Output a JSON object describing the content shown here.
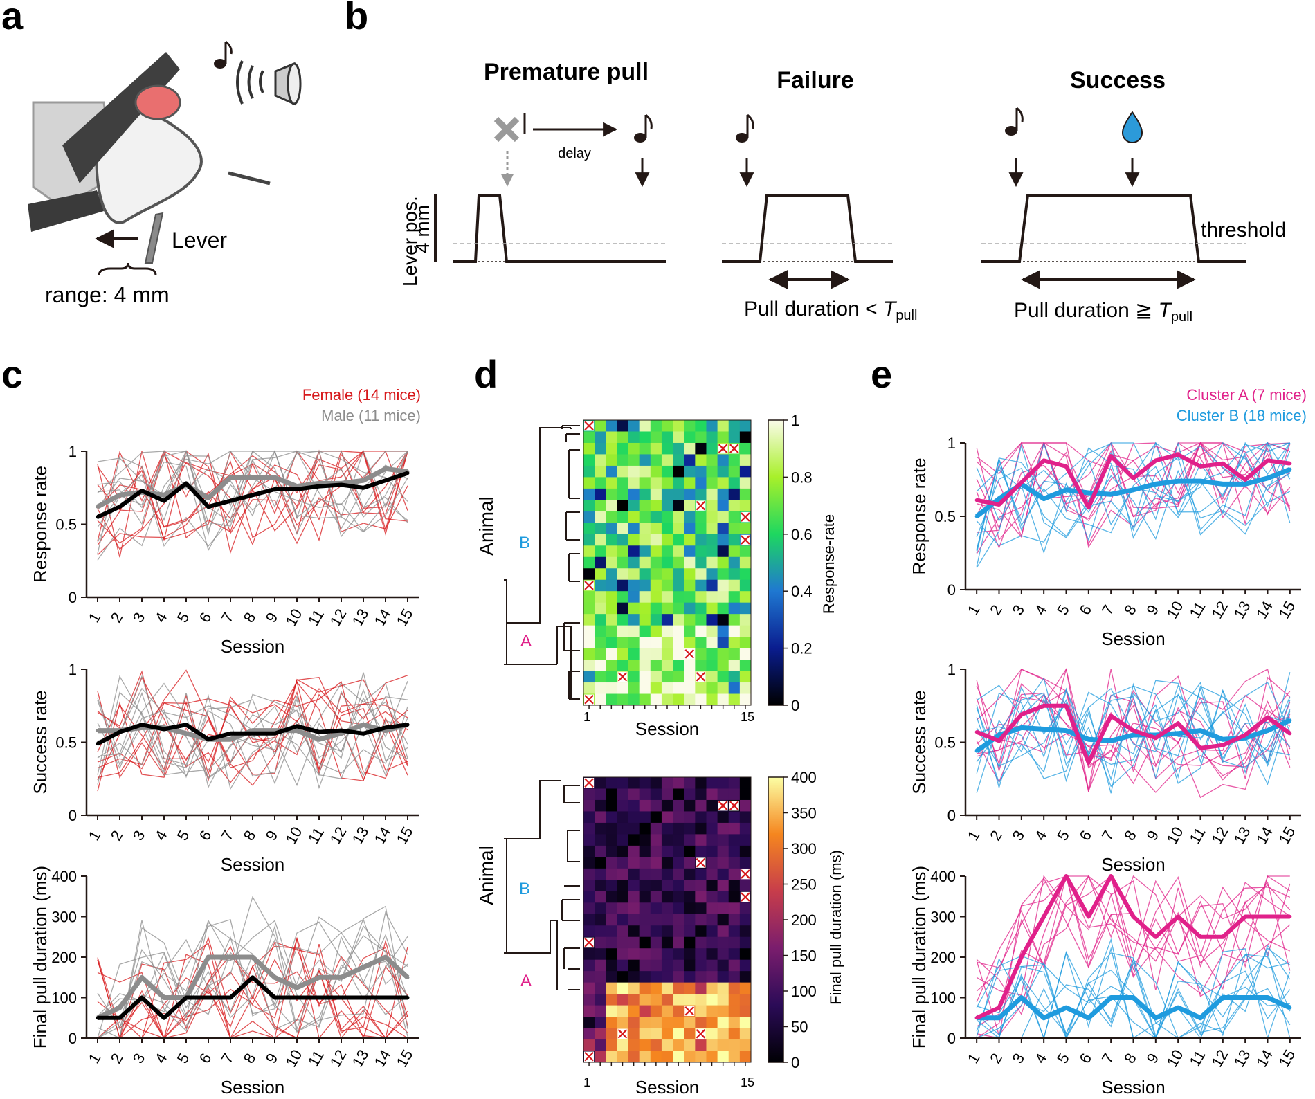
{
  "panels": {
    "a": {
      "label": "a",
      "lever_label": "Lever",
      "range_label": "range: 4 mm"
    },
    "b": {
      "label": "b",
      "titles": [
        "Premature pull",
        "Failure",
        "Success"
      ],
      "delay_label": "delay",
      "y_label_1": "Lever pos.",
      "y_label_2": "4 mm",
      "threshold_label": "threshold",
      "failure_caption": "Pull duration <",
      "success_caption": "Pull duration ≧",
      "t_symbol": "T",
      "t_subscript": "pull"
    },
    "c": {
      "label": "c",
      "legend": [
        {
          "name": "Female (14 mice)",
          "color": "#d7191c"
        },
        {
          "name": "Male (11 mice)",
          "color": "#8c8c8c"
        }
      ]
    },
    "d": {
      "label": "d",
      "xlabel": "Session",
      "ylabel": "Animal",
      "cluster_labels": [
        "B",
        "A"
      ],
      "x_tick_first": "1",
      "x_tick_last": "15",
      "colorbar1_label": "Response-rate",
      "colorbar1_ticks": [
        "1",
        "0.8",
        "0.6",
        "0.4",
        "0.2",
        "0"
      ],
      "colorbar2_label": "Final pull duration (ms)",
      "colorbar2_ticks": [
        "400",
        "350",
        "300",
        "250",
        "200",
        "150",
        "100",
        "50",
        "0"
      ]
    },
    "e": {
      "label": "e",
      "legend": [
        {
          "name": "Cluster A (7 mice)",
          "color": "#e0218a"
        },
        {
          "name": "Cluster B (18 mice)",
          "color": "#1f9bde"
        }
      ]
    }
  },
  "chart_data": [
    {
      "id": "c-response",
      "type": "line",
      "title": "",
      "xlabel": "Session",
      "ylabel": "Response rate",
      "x": [
        1,
        2,
        3,
        4,
        5,
        6,
        7,
        8,
        9,
        10,
        11,
        12,
        13,
        14,
        15
      ],
      "ylim": [
        0,
        1
      ],
      "yticks": [
        "0",
        "0.5",
        "1"
      ],
      "series": [
        {
          "name": "Female mean",
          "color": "#000000",
          "values": [
            0.55,
            0.62,
            0.73,
            0.66,
            0.78,
            0.62,
            0.66,
            0.7,
            0.74,
            0.74,
            0.76,
            0.77,
            0.75,
            0.8,
            0.85
          ]
        },
        {
          "name": "Male mean",
          "color": "#8c8c8c",
          "values": [
            0.62,
            0.7,
            0.72,
            0.7,
            0.77,
            0.68,
            0.82,
            0.82,
            0.82,
            0.76,
            0.78,
            0.78,
            0.8,
            0.88,
            0.86
          ]
        }
      ]
    },
    {
      "id": "c-success",
      "type": "line",
      "title": "",
      "xlabel": "Session",
      "ylabel": "Success rate",
      "x": [
        1,
        2,
        3,
        4,
        5,
        6,
        7,
        8,
        9,
        10,
        11,
        12,
        13,
        14,
        15
      ],
      "ylim": [
        0,
        1
      ],
      "yticks": [
        "0",
        "0.5",
        "1"
      ],
      "series": [
        {
          "name": "Female mean",
          "color": "#000000",
          "values": [
            0.49,
            0.57,
            0.62,
            0.59,
            0.62,
            0.52,
            0.56,
            0.56,
            0.56,
            0.61,
            0.57,
            0.58,
            0.56,
            0.6,
            0.62
          ]
        },
        {
          "name": "Male mean",
          "color": "#8c8c8c",
          "values": [
            0.58,
            0.58,
            0.6,
            0.6,
            0.56,
            0.52,
            0.52,
            0.58,
            0.58,
            0.58,
            0.52,
            0.56,
            0.62,
            0.58,
            0.62
          ]
        }
      ]
    },
    {
      "id": "c-duration",
      "type": "line",
      "title": "",
      "xlabel": "Session",
      "ylabel": "Final pull duration (ms)",
      "x": [
        1,
        2,
        3,
        4,
        5,
        6,
        7,
        8,
        9,
        10,
        11,
        12,
        13,
        14,
        15
      ],
      "ylim": [
        0,
        400
      ],
      "yticks": [
        "0",
        "100",
        "200",
        "300",
        "400"
      ],
      "series": [
        {
          "name": "Female median",
          "color": "#000000",
          "values": [
            50,
            50,
            100,
            50,
            100,
            100,
            100,
            150,
            100,
            100,
            100,
            100,
            100,
            100,
            100
          ]
        },
        {
          "name": "Male median",
          "color": "#8c8c8c",
          "values": [
            50,
            75,
            150,
            100,
            100,
            200,
            200,
            200,
            150,
            125,
            150,
            150,
            175,
            200,
            150
          ]
        }
      ]
    },
    {
      "id": "e-response",
      "type": "line",
      "title": "",
      "xlabel": "Session",
      "ylabel": "Response rate",
      "x": [
        1,
        2,
        3,
        4,
        5,
        6,
        7,
        8,
        9,
        10,
        11,
        12,
        13,
        14,
        15
      ],
      "ylim": [
        0,
        1
      ],
      "yticks": [
        "0",
        "0.5",
        "1"
      ],
      "series": [
        {
          "name": "Cluster A mean",
          "color": "#e0218a",
          "values": [
            0.61,
            0.58,
            0.73,
            0.88,
            0.84,
            0.56,
            0.91,
            0.76,
            0.88,
            0.92,
            0.84,
            0.86,
            0.75,
            0.88,
            0.86
          ]
        },
        {
          "name": "Cluster B mean",
          "color": "#1f9bde",
          "values": [
            0.5,
            0.62,
            0.72,
            0.62,
            0.68,
            0.66,
            0.65,
            0.68,
            0.72,
            0.74,
            0.74,
            0.72,
            0.72,
            0.76,
            0.82
          ]
        }
      ]
    },
    {
      "id": "e-success",
      "type": "line",
      "title": "",
      "xlabel": "Session",
      "ylabel": "Success rate",
      "x": [
        1,
        2,
        3,
        4,
        5,
        6,
        7,
        8,
        9,
        10,
        11,
        12,
        13,
        14,
        15
      ],
      "ylim": [
        0,
        1
      ],
      "yticks": [
        "0",
        "0.5",
        "1"
      ],
      "series": [
        {
          "name": "Cluster A mean",
          "color": "#e0218a",
          "values": [
            0.57,
            0.51,
            0.69,
            0.75,
            0.75,
            0.36,
            0.68,
            0.58,
            0.53,
            0.63,
            0.46,
            0.48,
            0.55,
            0.67,
            0.56
          ]
        },
        {
          "name": "Cluster B mean",
          "color": "#1f9bde",
          "values": [
            0.44,
            0.55,
            0.6,
            0.59,
            0.58,
            0.52,
            0.51,
            0.55,
            0.55,
            0.56,
            0.58,
            0.52,
            0.53,
            0.58,
            0.65
          ]
        }
      ]
    },
    {
      "id": "e-duration",
      "type": "line",
      "title": "",
      "xlabel": "Session",
      "ylabel": "Final pull duration (ms)",
      "x": [
        1,
        2,
        3,
        4,
        5,
        6,
        7,
        8,
        9,
        10,
        11,
        12,
        13,
        14,
        15
      ],
      "ylim": [
        0,
        400
      ],
      "yticks": [
        "0",
        "100",
        "200",
        "300",
        "400"
      ],
      "series": [
        {
          "name": "Cluster A median",
          "color": "#e0218a",
          "values": [
            50,
            75,
            200,
            300,
            400,
            300,
            400,
            300,
            250,
            300,
            250,
            250,
            300,
            300,
            300
          ]
        },
        {
          "name": "Cluster B median",
          "color": "#1f9bde",
          "values": [
            50,
            50,
            100,
            50,
            75,
            50,
            100,
            100,
            50,
            75,
            50,
            100,
            100,
            100,
            75
          ]
        }
      ]
    }
  ]
}
